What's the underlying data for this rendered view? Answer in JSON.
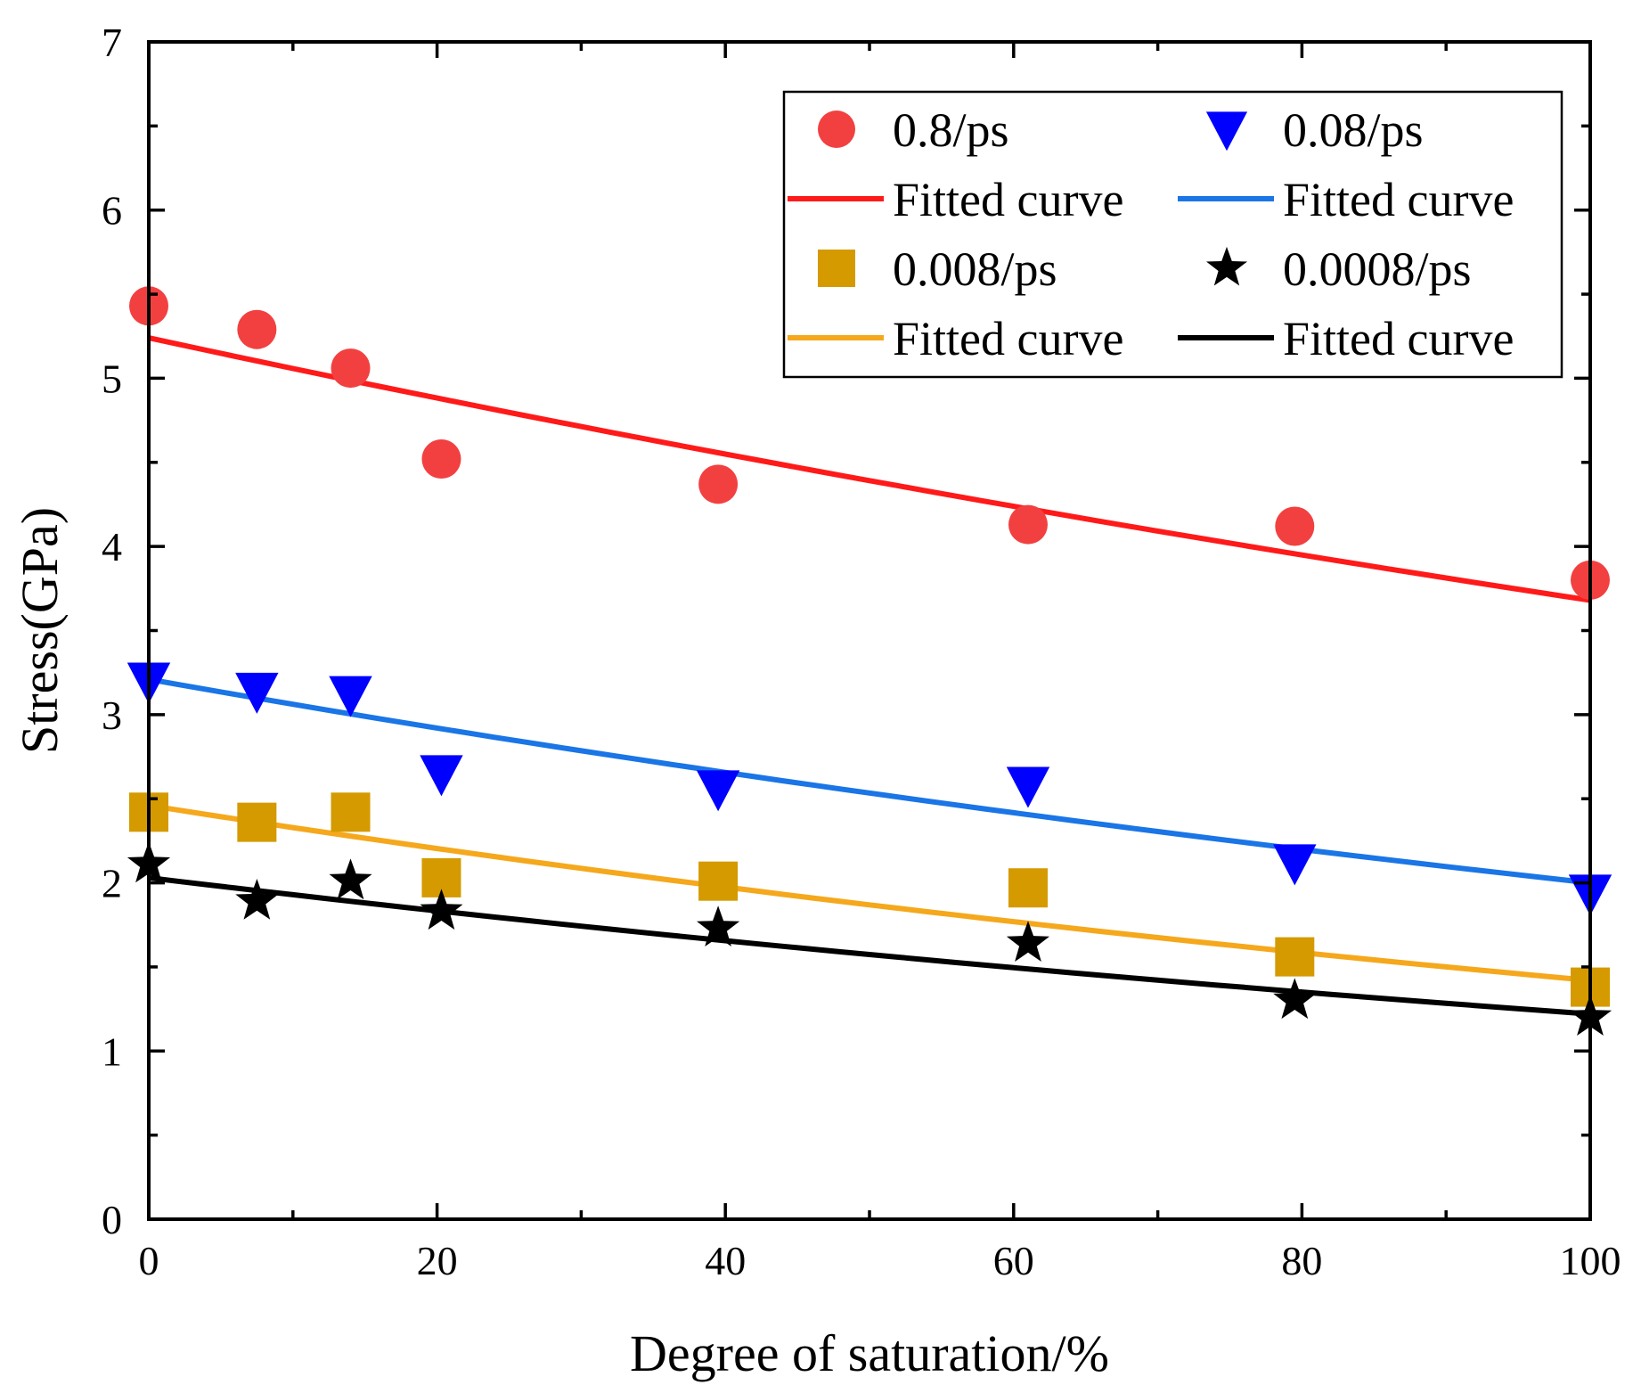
{
  "chart_data": {
    "type": "scatter",
    "title": "",
    "xlabel": "Degree of saturation/%",
    "ylabel": "Stress(GPa)",
    "xlim": [
      0,
      100
    ],
    "ylim": [
      0,
      7
    ],
    "x_ticks": [
      0,
      20,
      40,
      60,
      80,
      100
    ],
    "y_ticks": [
      0,
      1,
      2,
      3,
      4,
      5,
      6,
      7
    ],
    "x_minor_step": 10,
    "y_minor_step": 0.5,
    "grid": false,
    "legend_position": "top-right",
    "x": [
      0,
      7.5,
      14,
      20.3,
      39.5,
      61,
      79.5,
      100
    ],
    "series": [
      {
        "name": "0.8/ps",
        "marker": "circle",
        "marker_color": "#f24040",
        "values": [
          5.43,
          5.29,
          5.06,
          4.52,
          4.37,
          4.13,
          4.12,
          3.8
        ],
        "fit_name": "Fitted curve",
        "fit_color": "#ff1a1a",
        "fit_start": 5.24,
        "fit_end": 3.68
      },
      {
        "name": "0.08/ps",
        "marker": "triangle-down",
        "marker_color": "#0000ff",
        "values": [
          3.2,
          3.14,
          3.12,
          2.65,
          2.56,
          2.58,
          2.12,
          1.94
        ],
        "fit_name": "Fitted curve",
        "fit_color": "#1a75e6",
        "fit_start": 3.21,
        "fit_end": 2.0
      },
      {
        "name": "0.008/ps",
        "marker": "square",
        "marker_color": "#d49a00",
        "values": [
          2.42,
          2.36,
          2.42,
          2.03,
          2.01,
          1.97,
          1.56,
          1.38
        ],
        "fit_name": "Fitted curve",
        "fit_color": "#f5a81c",
        "fit_start": 2.46,
        "fit_end": 1.42
      },
      {
        "name": "0.0008/ps",
        "marker": "star",
        "marker_color": "#000000",
        "values": [
          2.11,
          1.89,
          2.01,
          1.83,
          1.73,
          1.64,
          1.3,
          1.2
        ],
        "fit_name": "Fitted curve",
        "fit_color": "#000000",
        "fit_start": 2.03,
        "fit_end": 1.22
      }
    ]
  }
}
